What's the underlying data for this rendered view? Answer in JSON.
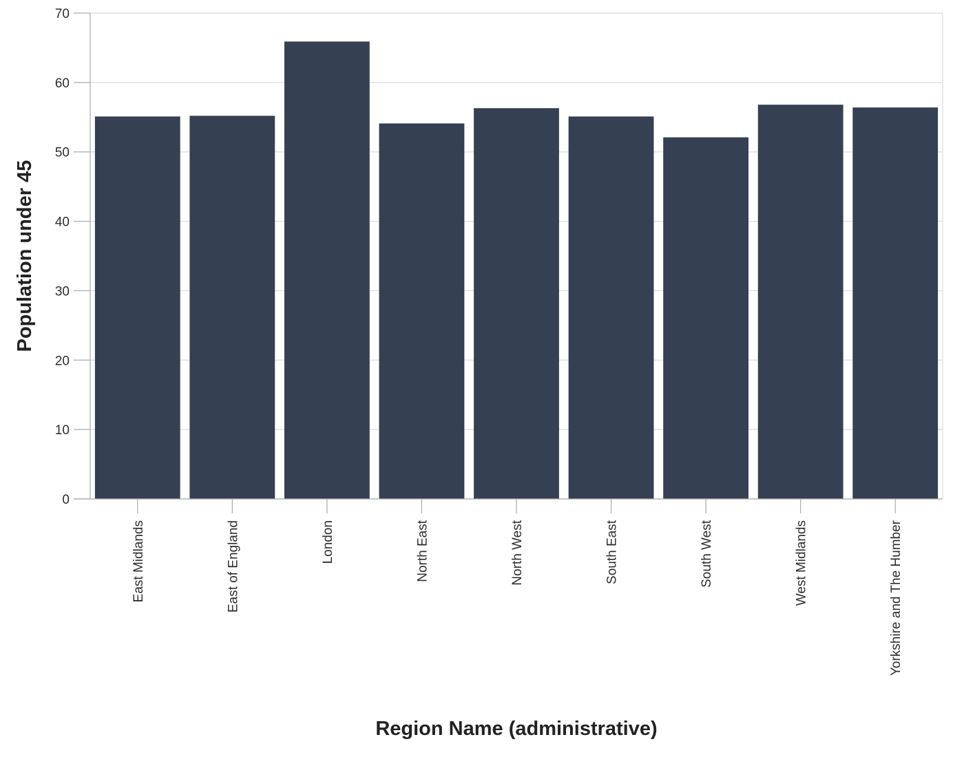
{
  "chart_data": {
    "type": "bar",
    "title": "",
    "xlabel": "Region Name (administrative)",
    "ylabel": "Population under 45",
    "categories": [
      "East Midlands",
      "East of England",
      "London",
      "North East",
      "North West",
      "South East",
      "South West",
      "West Midlands",
      "Yorkshire and The Humber"
    ],
    "values": [
      55.1,
      55.2,
      65.9,
      54.1,
      56.3,
      55.1,
      52.1,
      56.8,
      56.4
    ],
    "ylim": [
      0,
      70
    ],
    "yticks": [
      0,
      10,
      20,
      30,
      40,
      50,
      60,
      70
    ],
    "grid": true,
    "legend": "none",
    "colors": {
      "bar": "#354052",
      "grid": "#dadada",
      "axis": "#aaaaaa"
    }
  }
}
